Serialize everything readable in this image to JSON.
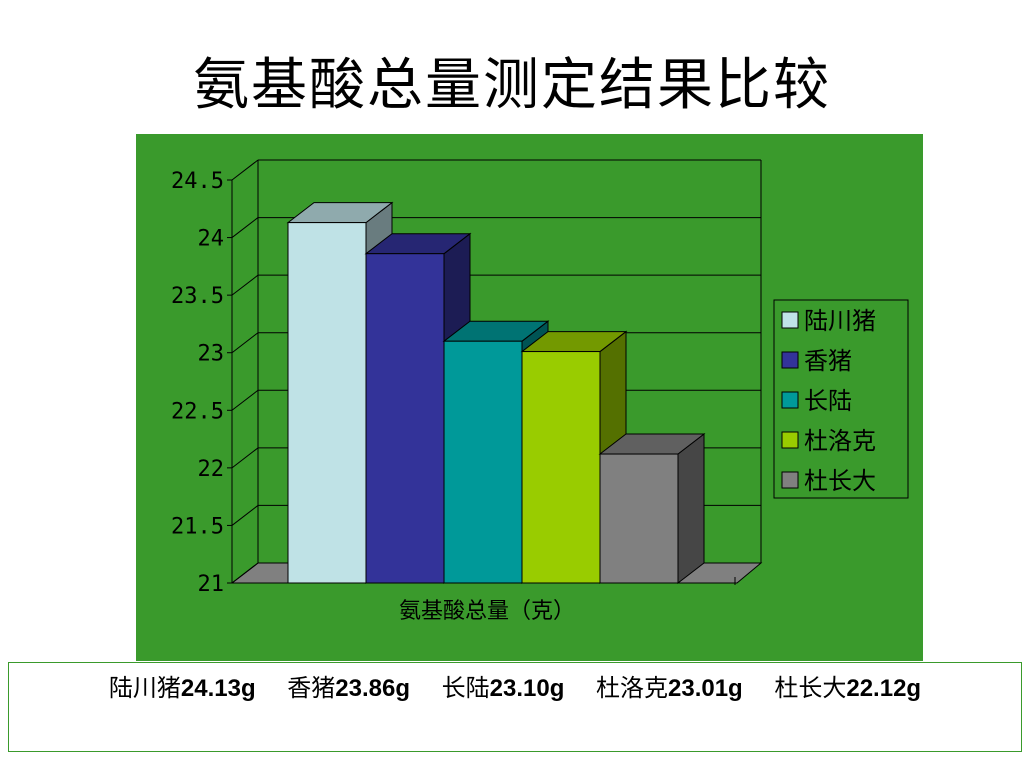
{
  "title": "氨基酸总量测定结果比较",
  "chart_data": {
    "type": "bar",
    "title": "",
    "xlabel": "氨基酸总量（克）",
    "ylabel": "",
    "ylim": [
      21,
      24.5
    ],
    "yticks": [
      "24.5",
      "24",
      "23.5",
      "23",
      "22.5",
      "22",
      "21.5",
      "21"
    ],
    "grid": true,
    "legend_position": "right",
    "series": [
      {
        "name": "陆川猪",
        "value": 24.13,
        "color": "#bfe2e6"
      },
      {
        "name": "香猪",
        "value": 23.86,
        "color": "#333399"
      },
      {
        "name": "长陆",
        "value": 23.1,
        "color": "#009999"
      },
      {
        "name": "杜洛克",
        "value": 23.01,
        "color": "#99cc00"
      },
      {
        "name": "杜长大",
        "value": 22.12,
        "color": "#808080"
      }
    ]
  },
  "caption": [
    {
      "name": "陆川猪",
      "value": "24.13g"
    },
    {
      "name": "香猪",
      "value": "23.86g"
    },
    {
      "name": "长陆",
      "value": "23.10g"
    },
    {
      "name": "杜洛克",
      "value": "23.01g"
    },
    {
      "name": "杜长大",
      "value": "22.12g"
    }
  ]
}
